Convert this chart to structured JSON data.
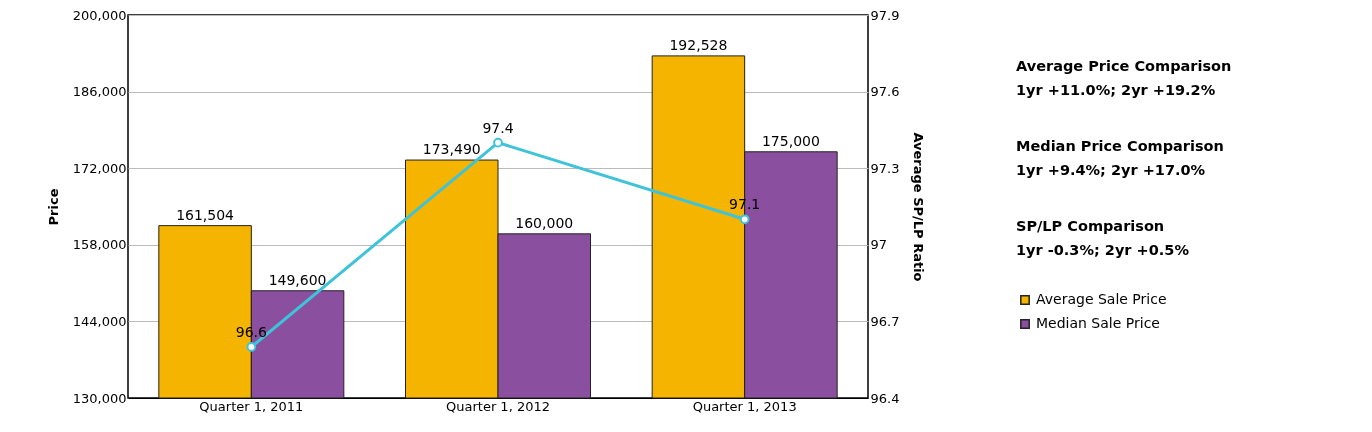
{
  "chart_data": {
    "type": "bar",
    "categories": [
      "Quarter 1, 2011",
      "Quarter 1, 2012",
      "Quarter 1, 2013"
    ],
    "ylabel": "Price",
    "y2label": "Average SP/LP Ratio",
    "ylim": [
      130000,
      200000
    ],
    "yticks": [
      {
        "value": 130000,
        "label": "130,000"
      },
      {
        "value": 144000,
        "label": "144,000"
      },
      {
        "value": 158000,
        "label": "158,000"
      },
      {
        "value": 172000,
        "label": "172,000"
      },
      {
        "value": 186000,
        "label": "186,000"
      },
      {
        "value": 200000,
        "label": "200,000"
      }
    ],
    "y2lim": [
      96.4,
      97.9
    ],
    "y2ticks": [
      96.4,
      96.7,
      97,
      97.3,
      97.6,
      97.9
    ],
    "series": [
      {
        "name": "Average Sale Price",
        "color": "#f5b400",
        "values": [
          161504,
          173490,
          192528
        ],
        "value_labels": [
          "161,504",
          "173,490",
          "192,528"
        ]
      },
      {
        "name": "Median Sale Price",
        "color": "#8a4f9e",
        "values": [
          149600,
          160000,
          175000
        ],
        "value_labels": [
          "149,600",
          "160,000",
          "175,000"
        ]
      },
      {
        "type": "line",
        "axis": "y2",
        "color": "#3ec3d8",
        "values": [
          96.6,
          97.4,
          97.1
        ],
        "value_labels": [
          "96.6",
          "97.4",
          "97.1"
        ]
      }
    ],
    "grid": "y",
    "legend": "right",
    "marker": "circle",
    "annotations": [
      "Average Price Comparison",
      "1yr +11.0%; 2yr +19.2%",
      "Median Price Comparison",
      "1yr +9.4%; 2yr +17.0%",
      "SP/LP Comparison",
      "1yr -0.3%; 2yr +0.5%"
    ]
  }
}
